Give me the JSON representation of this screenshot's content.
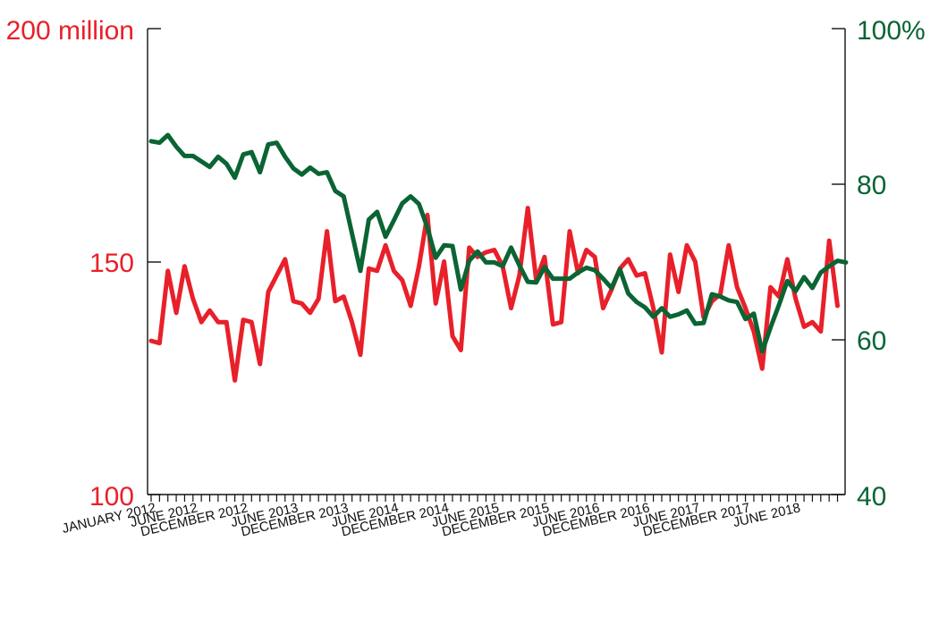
{
  "chart_data": {
    "type": "line",
    "x_tick_labels": [
      "JANUARY 2012",
      "JUNE 2012",
      "DECEMBER 2012",
      "JUNE 2013",
      "DECEMBER 2013",
      "JUNE 2014",
      "DECEMBER 2014",
      "JUNE 2015",
      "DECEMBER 2015",
      "JUNE 2016",
      "DECEMBER 2016",
      "JUNE 2017",
      "DECEMBER 2017",
      "JUNE 2018"
    ],
    "x_range": [
      "January 2012",
      "September 2018"
    ],
    "left_axis": {
      "ylim": [
        100,
        200
      ],
      "tick_labels": [
        "200 million",
        "150",
        "100"
      ],
      "color": "#e8202a"
    },
    "right_axis": {
      "ylim": [
        40,
        100
      ],
      "tick_labels": [
        "100%",
        "80",
        "60",
        "40"
      ],
      "color": "#0a6433"
    },
    "series": [
      {
        "axis": "left",
        "color": "#e8202a",
        "values": [
          133,
          132.5,
          148,
          139,
          149,
          142,
          137,
          139.5,
          137,
          137,
          124.5,
          137.5,
          137,
          128,
          143.5,
          147,
          150.5,
          141.5,
          141,
          139,
          142,
          156.5,
          141.5,
          142.5,
          137,
          130,
          148.5,
          148,
          153.5,
          148,
          146,
          140.5,
          149,
          160,
          141,
          150,
          134,
          131,
          153,
          151,
          152,
          152.5,
          149,
          140,
          147,
          161.5,
          146,
          151,
          136.5,
          137,
          156.5,
          147.5,
          152.5,
          151,
          140,
          144,
          148.5,
          150.5,
          147,
          147.5,
          140,
          130.5,
          151.5,
          143.5,
          153.5,
          150,
          138,
          141.5,
          143,
          153.5,
          144.5,
          140,
          135,
          127,
          144.5,
          142.5,
          150.5,
          142,
          136,
          137,
          135,
          154.5,
          140.5
        ]
      },
      {
        "axis": "right",
        "color": "#0a6433",
        "values": [
          85.5,
          85.3,
          86.3,
          84.8,
          83.6,
          83.6,
          82.9,
          82.2,
          83.5,
          82.6,
          80.8,
          83.8,
          84.1,
          81.5,
          85.1,
          85.3,
          83.5,
          82,
          81.2,
          82.1,
          81.3,
          81.5,
          79.1,
          78.4,
          73.6,
          68.8,
          75.4,
          76.4,
          73.2,
          75.3,
          77.5,
          78.4,
          77.4,
          74.4,
          70.5,
          72.1,
          72,
          66.4,
          70.1,
          71.3,
          69.9,
          69.9,
          69.4,
          71.8,
          69.5,
          67.4,
          67.3,
          69.3,
          67.8,
          67.8,
          67.8,
          68.6,
          69.2,
          68.9,
          67.8,
          66.6,
          69,
          65.9,
          64.8,
          64.1,
          62.9,
          64,
          62.9,
          63.2,
          63.7,
          62,
          62.1,
          65.8,
          65.5,
          65,
          64.8,
          62.6,
          63.3,
          58.4,
          61.5,
          64.4,
          67.5,
          66.2,
          68,
          66.6,
          68.6,
          69.4,
          70.1,
          69.9
        ]
      }
    ],
    "grid": false,
    "legend": "none"
  }
}
